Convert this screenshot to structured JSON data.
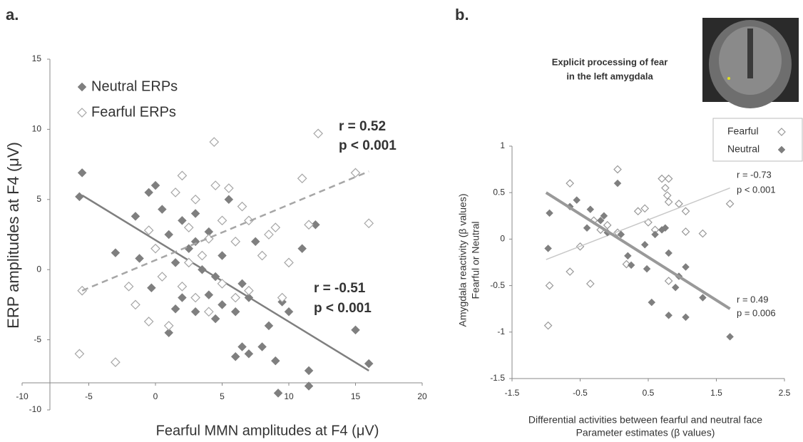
{
  "chart_data": [
    {
      "type": "scatter",
      "panel_label": "a.",
      "xlabel": "Fearful MMN amplitudes at F4 (μV)",
      "ylabel": "ERP amplitudes at F4 (μV)",
      "xlim": [
        -10,
        20
      ],
      "ylim": [
        -10,
        15
      ],
      "xticks": [
        -10,
        -5,
        0,
        5,
        10,
        15,
        20
      ],
      "yticks": [
        -10,
        -5,
        0,
        5,
        10,
        15
      ],
      "series": [
        {
          "name": "Neutral ERPs",
          "color": "#7f7f7f",
          "marker": "filled",
          "x": [
            -5.5,
            -5.7,
            -3,
            -1.5,
            -1.2,
            -0.5,
            -0.3,
            0,
            0.5,
            1,
            1,
            1.5,
            2,
            2,
            2.5,
            3,
            3,
            3.5,
            4,
            4,
            4.5,
            5,
            5,
            5.5,
            6,
            6,
            6.5,
            7,
            7,
            7.5,
            8,
            8.5,
            9,
            9.2,
            9.5,
            10,
            11,
            11.5,
            11.5,
            12,
            15,
            16,
            1.5,
            3,
            6.5,
            4.5
          ],
          "y": [
            6.9,
            5.2,
            1.2,
            3.8,
            0.8,
            5.5,
            -1.3,
            6,
            4.3,
            2.5,
            -4.5,
            0.5,
            3.5,
            -2,
            1.5,
            -3,
            4,
            0,
            -1.8,
            2.7,
            -3.5,
            1,
            -2.5,
            5,
            -3,
            -6.2,
            -5.5,
            -2,
            -6,
            2,
            -5.5,
            -4,
            -6.5,
            -8.8,
            -2.3,
            -3,
            1.5,
            -7.2,
            -8.3,
            3.2,
            -4.3,
            -6.7,
            -2.8,
            2,
            -1,
            -0.5
          ],
          "fit": {
            "x": [
              -5.5,
              16
            ],
            "y": [
              5.3,
              -7.2
            ],
            "style": "solid"
          },
          "stats": [
            "r = -0.51",
            "p < 0.001"
          ]
        },
        {
          "name": "Fearful ERPs",
          "color": "#a6a6a6",
          "marker": "open",
          "x": [
            -5.5,
            -5.7,
            -3,
            -2,
            -1.5,
            -0.5,
            -0.5,
            0,
            0.5,
            1,
            1.5,
            2,
            2,
            2.5,
            3,
            3,
            3.5,
            4,
            4.4,
            4.5,
            5,
            5,
            5.5,
            6,
            6,
            6.5,
            7,
            7,
            8,
            8.5,
            9,
            9.5,
            10,
            11,
            11.5,
            12.2,
            15,
            16,
            2.5,
            4
          ],
          "y": [
            -1.5,
            -6,
            -6.6,
            -1.2,
            -2.5,
            -3.7,
            2.8,
            1.5,
            -0.5,
            -4,
            5.5,
            6.7,
            -1.2,
            3,
            -2,
            5,
            1,
            -3,
            9.1,
            6,
            3.5,
            -1,
            5.8,
            2,
            -2,
            4.5,
            3.5,
            -1.5,
            1,
            2.5,
            3,
            -2,
            0.5,
            6.5,
            3.2,
            9.7,
            6.9,
            3.3,
            0.5,
            2.2
          ],
          "fit": {
            "x": [
              -5.5,
              16
            ],
            "y": [
              -1.5,
              7
            ],
            "style": "dashed"
          },
          "stats": [
            "r = 0.52",
            "p < 0.001"
          ]
        }
      ]
    },
    {
      "type": "scatter",
      "panel_label": "b.",
      "title": [
        "Explicit processing of fear",
        "in the left amygdala"
      ],
      "xlabel": [
        "Differential activities  between fearful  and neutral face",
        "Parameter estimates (β values)"
      ],
      "ylabel": [
        "Amygdala reactivity (β values)",
        "Fearful  or  Neutral"
      ],
      "xlim": [
        -1.5,
        2.5
      ],
      "ylim": [
        -1.5,
        1
      ],
      "xticks": [
        -1.5,
        -0.5,
        0.5,
        1.5,
        2.5
      ],
      "yticks": [
        -1.5,
        -1,
        -0.5,
        0,
        0.5,
        1
      ],
      "series": [
        {
          "name": "Fearful",
          "color": "#999999",
          "marker": "open",
          "x": [
            -0.97,
            -0.95,
            -0.65,
            -0.65,
            -0.5,
            -0.35,
            -0.3,
            -0.2,
            -0.1,
            0.05,
            0.05,
            0.18,
            0.35,
            0.45,
            0.5,
            0.6,
            0.7,
            0.75,
            0.78,
            0.8,
            0.8,
            0.8,
            0.95,
            1.05,
            1.05,
            1.3,
            1.7
          ],
          "y": [
            -0.93,
            -0.5,
            0.6,
            -0.35,
            -0.08,
            -0.48,
            0.2,
            0.1,
            0.15,
            0.75,
            0.07,
            -0.27,
            0.3,
            0.33,
            0.18,
            0.1,
            0.65,
            0.55,
            0.47,
            0.65,
            0.4,
            -0.45,
            0.38,
            0.3,
            0.08,
            0.06,
            0.38
          ],
          "fit": {
            "x": [
              -1,
              1.7
            ],
            "y": [
              -0.22,
              0.55
            ],
            "style": "solid"
          },
          "stats": [
            "r = 0.49",
            "p = 0.006"
          ]
        },
        {
          "name": "Neutral",
          "color": "#7f7f7f",
          "marker": "filled",
          "x": [
            -0.97,
            -0.95,
            -0.65,
            -0.55,
            -0.4,
            -0.35,
            -0.2,
            -0.15,
            -0.1,
            0.05,
            0.1,
            0.2,
            0.25,
            0.45,
            0.48,
            0.55,
            0.7,
            0.75,
            0.8,
            0.8,
            0.9,
            0.95,
            1.05,
            1.05,
            1.3,
            1.7,
            0.6
          ],
          "y": [
            -0.1,
            0.28,
            0.35,
            0.42,
            0.12,
            0.32,
            0.2,
            0.25,
            0.07,
            0.6,
            0.05,
            -0.18,
            -0.28,
            -0.06,
            -0.32,
            -0.68,
            0.1,
            0.12,
            -0.15,
            -0.82,
            -0.52,
            -0.4,
            -0.3,
            -0.84,
            -0.63,
            -1.05,
            0.05
          ],
          "fit": {
            "x": [
              -1,
              1.7
            ],
            "y": [
              0.5,
              -0.75
            ],
            "style": "solid"
          },
          "stats": [
            "r = -0.73",
            "p < 0.001"
          ]
        }
      ]
    }
  ]
}
